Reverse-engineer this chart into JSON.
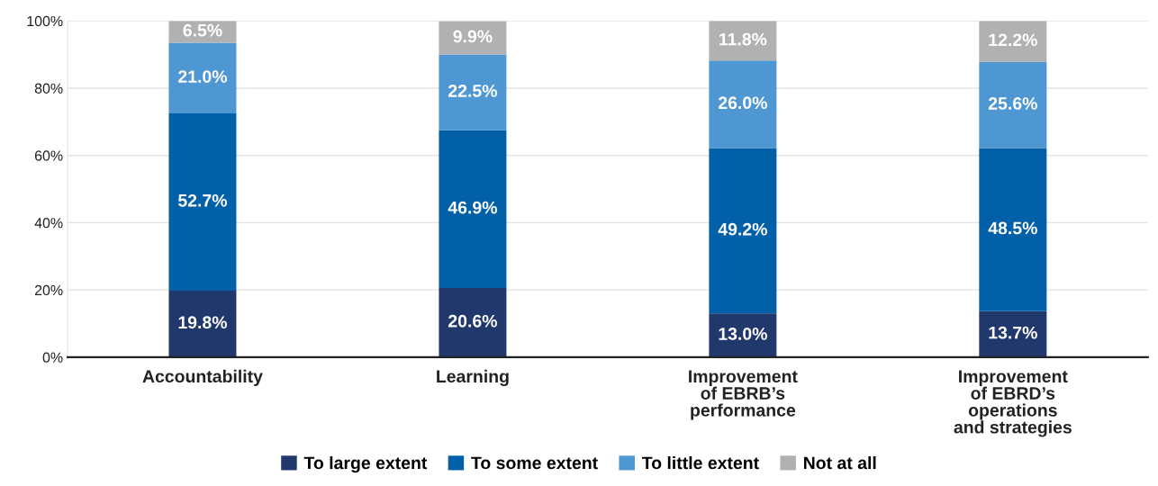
{
  "chart_data": {
    "type": "bar",
    "stacked": true,
    "categories": [
      "Accountability",
      "Learning",
      "Improvement\nof EBRB’s\nperformance",
      "Improvement\nof EBRD’s\noperations\nand strategies"
    ],
    "series": [
      {
        "name": "To large extent",
        "color": "#21386d",
        "values": [
          19.8,
          20.6,
          13.0,
          13.7
        ],
        "value_labels": [
          "19.8%",
          "20.6%",
          "13.0%",
          "13.7%"
        ]
      },
      {
        "name": "To some extent",
        "color": "#0260a8",
        "values": [
          52.7,
          46.9,
          49.2,
          48.5
        ],
        "value_labels": [
          "52.7%",
          "46.9%",
          "49.2%",
          "48.5%"
        ]
      },
      {
        "name": "To little extent",
        "color": "#4e97d3",
        "values": [
          21.0,
          22.5,
          26.0,
          25.6
        ],
        "value_labels": [
          "21.0%",
          "22.5%",
          "26.0%",
          "25.6%"
        ]
      },
      {
        "name": "Not at all",
        "color": "#b1b1b1",
        "values": [
          6.5,
          9.9,
          11.8,
          12.2
        ],
        "value_labels": [
          "6.5%",
          "9.9%",
          "11.8%",
          "12.2%"
        ]
      }
    ],
    "ylim": [
      0,
      100
    ],
    "yticks": [
      {
        "value": 0,
        "label": "0%"
      },
      {
        "value": 20,
        "label": "20%"
      },
      {
        "value": 40,
        "label": "40%"
      },
      {
        "value": 60,
        "label": "60%"
      },
      {
        "value": 80,
        "label": "80%"
      },
      {
        "value": 100,
        "label": "100%"
      }
    ],
    "grid": "y",
    "legend": "bottom"
  }
}
